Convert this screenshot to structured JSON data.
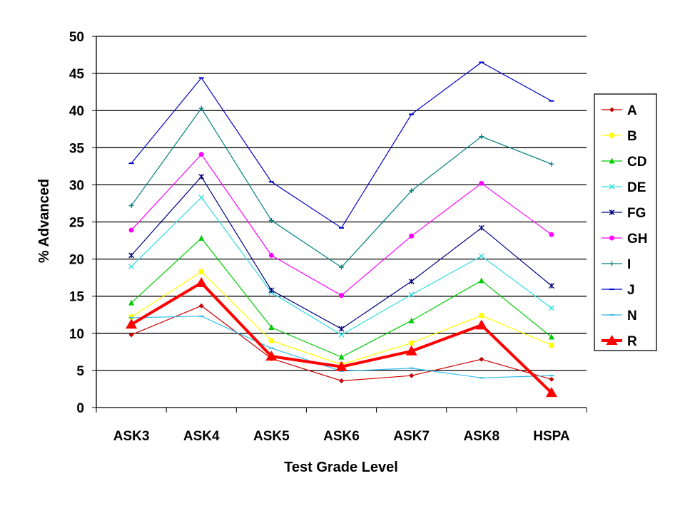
{
  "chart_data": {
    "type": "line",
    "title": "",
    "xlabel": "Test Grade Level",
    "ylabel": "% Advanced",
    "ylim": [
      0,
      50
    ],
    "yticks": [
      0,
      5,
      10,
      15,
      20,
      25,
      30,
      35,
      40,
      45,
      50
    ],
    "grid": true,
    "legend_position": "right",
    "categories": [
      "ASK3",
      "ASK4",
      "ASK5",
      "ASK6",
      "ASK7",
      "ASK8",
      "HSPA"
    ],
    "series": [
      {
        "name": "A",
        "color": "#cc0000",
        "marker": "diamond",
        "values": [
          9.8,
          13.7,
          6.6,
          3.6,
          4.3,
          6.5,
          3.8
        ]
      },
      {
        "name": "B",
        "color": "#ffff00",
        "marker": "square",
        "values": [
          12.2,
          18.3,
          9.0,
          5.8,
          8.7,
          12.4,
          8.4
        ]
      },
      {
        "name": "CD",
        "color": "#00cc00",
        "marker": "triangle",
        "values": [
          14.1,
          22.8,
          10.8,
          6.8,
          11.7,
          17.1,
          9.5
        ]
      },
      {
        "name": "DE",
        "color": "#33dddd",
        "marker": "x",
        "values": [
          19.0,
          28.3,
          15.5,
          9.8,
          15.2,
          20.4,
          13.4
        ]
      },
      {
        "name": "FG",
        "color": "#000080",
        "marker": "star",
        "values": [
          20.5,
          31.1,
          15.8,
          10.6,
          17.0,
          24.2,
          16.4
        ]
      },
      {
        "name": "GH",
        "color": "#ff00ff",
        "marker": "circle",
        "values": [
          23.9,
          34.1,
          20.5,
          15.1,
          23.1,
          30.2,
          23.3
        ]
      },
      {
        "name": "I",
        "color": "#008080",
        "marker": "plus",
        "values": [
          27.2,
          40.3,
          25.2,
          18.9,
          29.2,
          36.5,
          32.8
        ]
      },
      {
        "name": "J",
        "color": "#0000cc",
        "marker": "dash",
        "values": [
          32.9,
          44.4,
          30.4,
          24.2,
          39.5,
          46.5,
          41.3
        ]
      },
      {
        "name": "N",
        "color": "#33bbee",
        "marker": "dash",
        "values": [
          12.1,
          12.3,
          8.0,
          4.9,
          5.3,
          4.0,
          4.3
        ]
      },
      {
        "name": "R",
        "color": "#ff0000",
        "marker": "big-triangle",
        "values": [
          11.2,
          16.8,
          6.9,
          5.5,
          7.6,
          11.1,
          2.0
        ]
      }
    ]
  }
}
